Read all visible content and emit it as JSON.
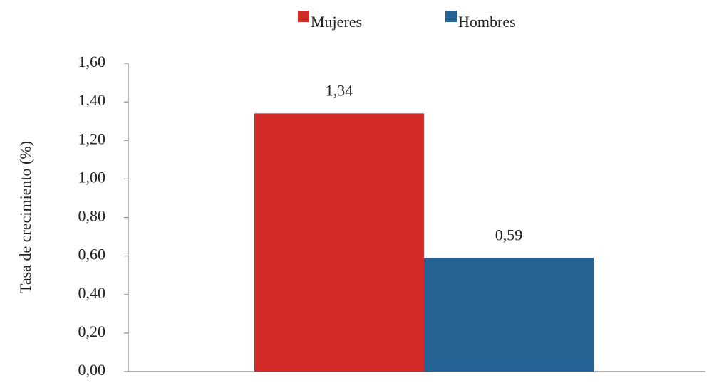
{
  "chart_data": {
    "type": "bar",
    "categories": [
      null
    ],
    "series": [
      {
        "name": "Mujeres",
        "color": "#d22b27",
        "values": [
          1.34
        ],
        "value_labels": [
          "1,34"
        ]
      },
      {
        "name": "Hombres",
        "color": "#256394",
        "values": [
          0.59
        ],
        "value_labels": [
          "0,59"
        ]
      }
    ],
    "y_label": "Tasa de crecimiento (%)",
    "ylim": [
      0,
      1.6
    ],
    "yticks": [
      {
        "value": 0,
        "label": "0,00"
      },
      {
        "value": 0.2,
        "label": "0,20"
      },
      {
        "value": 0.4,
        "label": "0,40"
      },
      {
        "value": 0.6,
        "label": "0,60"
      },
      {
        "value": 0.8,
        "label": "0,80"
      },
      {
        "value": 1.0,
        "label": "1,00"
      },
      {
        "value": 1.2,
        "label": "1,20"
      },
      {
        "value": 1.4,
        "label": "1,40"
      },
      {
        "value": 1.6,
        "label": "1,60"
      }
    ],
    "legend": "top",
    "grid": false
  }
}
